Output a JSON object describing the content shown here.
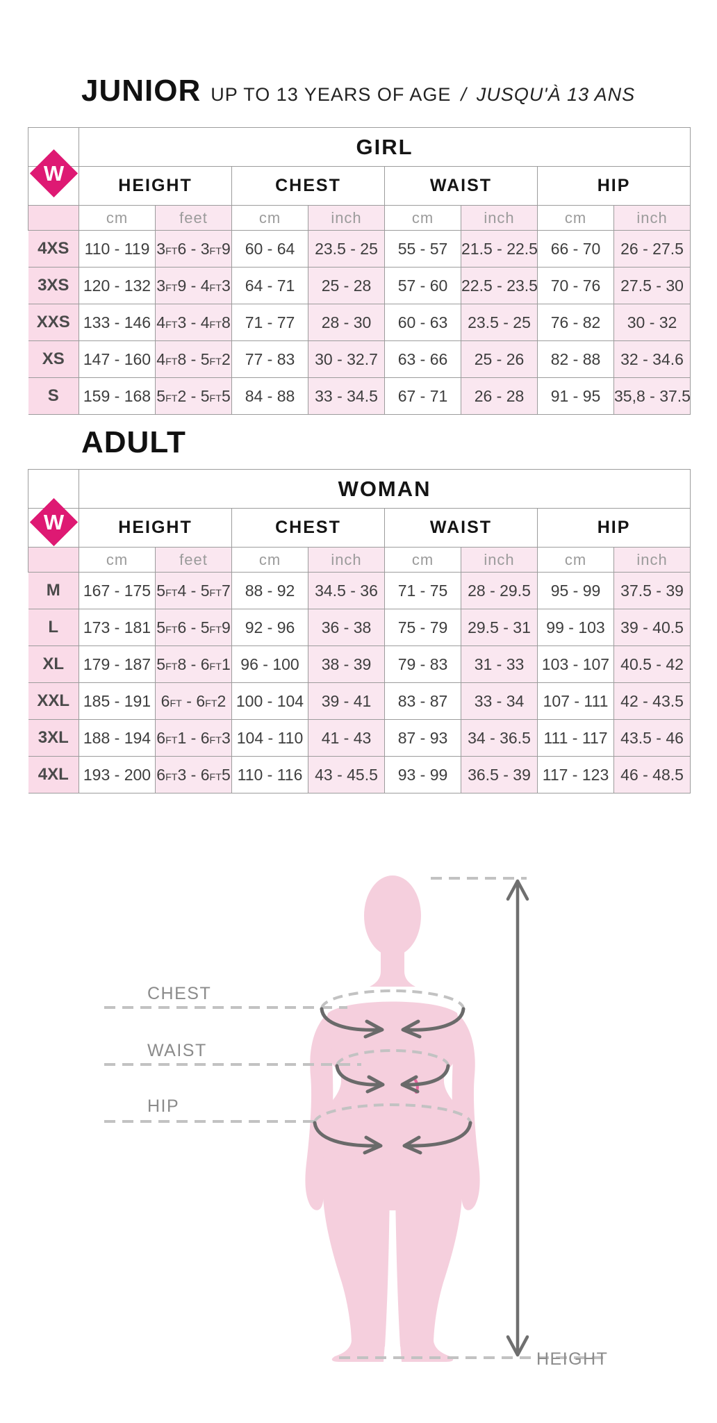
{
  "logo": {
    "letter": "W",
    "color": "#de1973"
  },
  "colors": {
    "accent": "#de1973",
    "row_pink": "#fae7f0",
    "label_pink": "#fadbe8",
    "silhouette_pink": "#f5cfdd",
    "border_gray": "#9c9c9c",
    "diagram_gray": "#6a6a6a"
  },
  "junior": {
    "title": "JUNIOR",
    "subtitle": "UP TO 13 YEARS OF AGE",
    "subtitle_separator": "/",
    "subtitle_italic": "JUSQU'À 13 ANS",
    "table": {
      "header": "GIRL",
      "groups": [
        "HEIGHT",
        "CHEST",
        "WAIST",
        "HIP"
      ],
      "units": [
        "cm",
        "feet",
        "cm",
        "inch",
        "cm",
        "inch",
        "cm",
        "inch"
      ],
      "rows": [
        {
          "size": "4XS",
          "values": [
            "110 - 119",
            "3FT6 - 3FT9",
            "60 - 64",
            "23.5 - 25",
            "55 - 57",
            "21.5 - 22.5",
            "66 - 70",
            "26 - 27.5"
          ]
        },
        {
          "size": "3XS",
          "values": [
            "120 - 132",
            "3FT9 - 4FT3",
            "64 - 71",
            "25 - 28",
            "57 - 60",
            "22.5 - 23.5",
            "70 - 76",
            "27.5 - 30"
          ]
        },
        {
          "size": "XXS",
          "values": [
            "133 - 146",
            "4FT3 - 4FT8",
            "71 - 77",
            "28 - 30",
            "60 - 63",
            "23.5 - 25",
            "76 - 82",
            "30 - 32"
          ]
        },
        {
          "size": "XS",
          "values": [
            "147 - 160",
            "4FT8 - 5FT2",
            "77 - 83",
            "30 - 32.7",
            "63 - 66",
            "25 - 26",
            "82 - 88",
            "32 - 34.6"
          ]
        },
        {
          "size": "S",
          "values": [
            "159 - 168",
            "5FT2 - 5FT5",
            "84 - 88",
            "33 - 34.5",
            "67 - 71",
            "26 - 28",
            "91 - 95",
            "35,8 - 37.5"
          ]
        }
      ]
    }
  },
  "adult": {
    "title": "ADULT",
    "table": {
      "header": "WOMAN",
      "groups": [
        "HEIGHT",
        "CHEST",
        "WAIST",
        "HIP"
      ],
      "units": [
        "cm",
        "feet",
        "cm",
        "inch",
        "cm",
        "inch",
        "cm",
        "inch"
      ],
      "rows": [
        {
          "size": "M",
          "values": [
            "167 - 175",
            "5FT4 - 5FT7",
            "88 - 92",
            "34.5 - 36",
            "71 - 75",
            "28 - 29.5",
            "95 - 99",
            "37.5 - 39"
          ]
        },
        {
          "size": "L",
          "values": [
            "173 - 181",
            "5FT6 - 5FT9",
            "92 - 96",
            "36 - 38",
            "75 - 79",
            "29.5 - 31",
            "99 - 103",
            "39 - 40.5"
          ]
        },
        {
          "size": "XL",
          "values": [
            "179 - 187",
            "5FT8 - 6FT1",
            "96 - 100",
            "38 - 39",
            "79 - 83",
            "31 - 33",
            "103 - 107",
            "40.5 - 42"
          ]
        },
        {
          "size": "XXL",
          "values": [
            "185 - 191",
            "6FT - 6FT2",
            "100 - 104",
            "39 - 41",
            "83 - 87",
            "33 - 34",
            "107 - 111",
            "42 - 43.5"
          ]
        },
        {
          "size": "3XL",
          "values": [
            "188 - 194",
            "6FT1 - 6FT3",
            "104 - 110",
            "41 - 43",
            "87 - 93",
            "34 - 36.5",
            "111 - 117",
            "43.5 - 46"
          ]
        },
        {
          "size": "4XL",
          "values": [
            "193 - 200",
            "6FT3 - 6FT5",
            "110 - 116",
            "43 - 45.5",
            "93 - 99",
            "36.5 - 39",
            "117 - 123",
            "46 - 48.5"
          ]
        }
      ]
    }
  },
  "diagram": {
    "labels": {
      "chest": "CHEST",
      "waist": "WAIST",
      "hip": "HIP",
      "height": "HEIGHT"
    }
  }
}
